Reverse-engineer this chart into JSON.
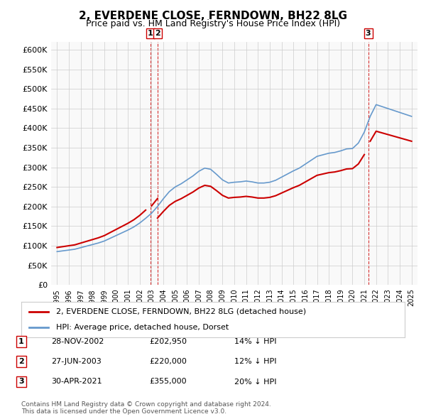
{
  "title": "2, EVERDENE CLOSE, FERNDOWN, BH22 8LG",
  "subtitle": "Price paid vs. HM Land Registry's House Price Index (HPI)",
  "hpi_color": "#6699cc",
  "price_color": "#cc0000",
  "transaction_color": "#cc0000",
  "background_color": "#ffffff",
  "plot_bg_color": "#f9f9f9",
  "legend_label_price": "2, EVERDENE CLOSE, FERNDOWN, BH22 8LG (detached house)",
  "legend_label_hpi": "HPI: Average price, detached house, Dorset",
  "transactions": [
    {
      "id": 1,
      "date": "28-NOV-2002",
      "price": 202950,
      "pct": "14%",
      "dir": "↓"
    },
    {
      "id": 2,
      "date": "27-JUN-2003",
      "price": 220000,
      "pct": "12%",
      "dir": "↓"
    },
    {
      "id": 3,
      "date": "30-APR-2021",
      "price": 355000,
      "pct": "20%",
      "dir": "↓"
    }
  ],
  "transaction_years": [
    2002.91,
    2003.49,
    2021.33
  ],
  "transaction_prices": [
    202950,
    220000,
    355000
  ],
  "footer": "Contains HM Land Registry data © Crown copyright and database right 2024.\nThis data is licensed under the Open Government Licence v3.0.",
  "ylim": [
    0,
    620000
  ],
  "yticks": [
    0,
    50000,
    100000,
    150000,
    200000,
    250000,
    300000,
    350000,
    400000,
    450000,
    500000,
    550000,
    600000
  ],
  "ytick_labels": [
    "£0",
    "£50K",
    "£100K",
    "£150K",
    "£200K",
    "£250K",
    "£300K",
    "£350K",
    "£400K",
    "£450K",
    "£500K",
    "£550K",
    "£600K"
  ]
}
